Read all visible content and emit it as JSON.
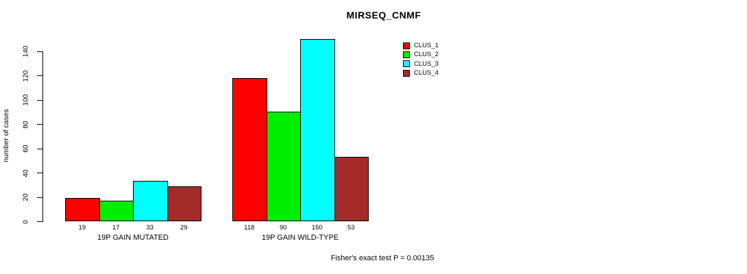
{
  "chart_data": {
    "type": "bar",
    "title": "MIRSEQ_CNMF",
    "ylabel": "number of cases",
    "xlabel": "",
    "ylim": [
      0,
      150
    ],
    "yticks": [
      0,
      20,
      40,
      60,
      80,
      100,
      120,
      140
    ],
    "grid": false,
    "legend_position": "top-right",
    "categories": [
      "19P GAIN MUTATED",
      "19P GAIN WILD-TYPE"
    ],
    "series": [
      {
        "name": "CLUS_1",
        "color": "#ff0000",
        "values": [
          19,
          118
        ]
      },
      {
        "name": "CLUS_2",
        "color": "#00ee00",
        "values": [
          17,
          90
        ]
      },
      {
        "name": "CLUS_3",
        "color": "#00ffff",
        "values": [
          33,
          150
        ]
      },
      {
        "name": "CLUS_4",
        "color": "#a52a2a",
        "values": [
          29,
          53
        ]
      }
    ],
    "bar_value_labels": [
      [
        "19",
        "17",
        "33",
        "29"
      ],
      [
        "118",
        "90",
        "150",
        "53"
      ]
    ],
    "footnote": "Fisher's exact test P = 0.00135"
  }
}
